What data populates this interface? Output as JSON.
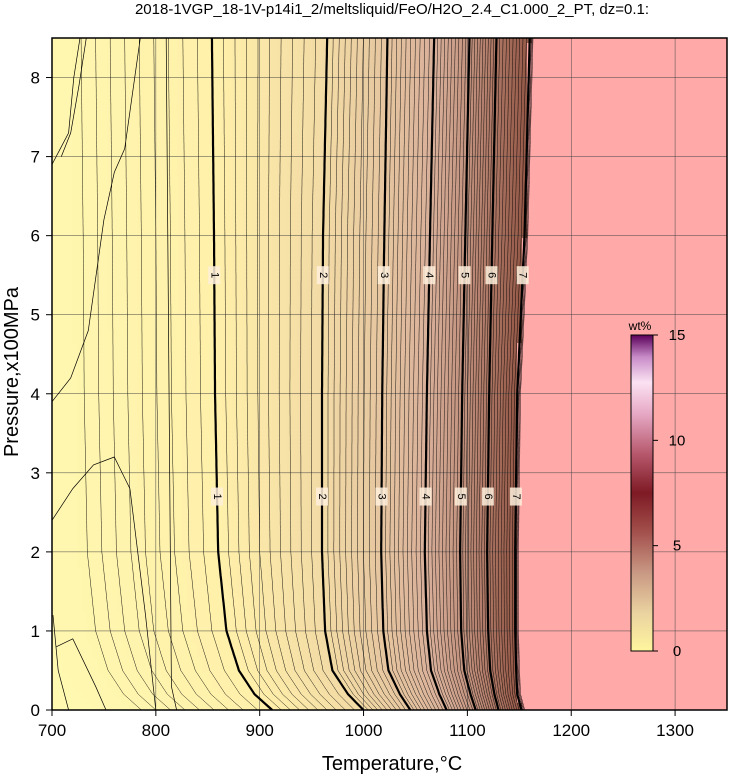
{
  "chart_data": {
    "type": "heatmap",
    "title": "2018-1VGP_18-1V-p14i1_2/meltsliquid/FeO/H2O_2.4_C1.000_2_PT, dz=0.1:",
    "xlabel": "Temperature,°C",
    "ylabel": "Pressure,x100MPa",
    "xlim": [
      700,
      1350
    ],
    "ylim": [
      0,
      8.5
    ],
    "x_ticks": [
      700,
      800,
      900,
      1000,
      1100,
      1200,
      1300
    ],
    "y_ticks": [
      0,
      1,
      2,
      3,
      4,
      5,
      6,
      7,
      8
    ],
    "grid": true,
    "colorbar": {
      "unit": "wt%",
      "range": [
        0,
        15
      ],
      "ticks": [
        0,
        5,
        10,
        15
      ],
      "placement": "right-middle"
    },
    "colors": {
      "low": "#fff8b0",
      "mid": "#d9b09a",
      "high": "#8a4a3a",
      "saturated_region": "#ffaaa8"
    },
    "contour_interval": 0.1,
    "saturated_above_value": 7.5,
    "labeled_contours": [
      {
        "value": 1,
        "label": "1",
        "x_at_p": [
          [
            8.5,
            854
          ],
          [
            6,
            856
          ],
          [
            4,
            857
          ],
          [
            2,
            860
          ],
          [
            1,
            868
          ],
          [
            0.5,
            880
          ],
          [
            0.2,
            895
          ],
          [
            0,
            912
          ]
        ]
      },
      {
        "value": 2,
        "label": "2",
        "x_at_p": [
          [
            8.5,
            965
          ],
          [
            6,
            961
          ],
          [
            4,
            960
          ],
          [
            2,
            960
          ],
          [
            1,
            963
          ],
          [
            0.5,
            970
          ],
          [
            0.2,
            985
          ],
          [
            0,
            1000
          ]
        ]
      },
      {
        "value": 3,
        "label": "3",
        "x_at_p": [
          [
            8.5,
            1023
          ],
          [
            6,
            1020
          ],
          [
            4,
            1018
          ],
          [
            2,
            1017
          ],
          [
            1,
            1019
          ],
          [
            0.5,
            1024
          ],
          [
            0.2,
            1035
          ],
          [
            0,
            1045
          ]
        ]
      },
      {
        "value": 4,
        "label": "4",
        "x_at_p": [
          [
            8.5,
            1068
          ],
          [
            6,
            1064
          ],
          [
            4,
            1061
          ],
          [
            2,
            1059
          ],
          [
            1,
            1061
          ],
          [
            0.5,
            1065
          ],
          [
            0.2,
            1073
          ],
          [
            0,
            1080
          ]
        ]
      },
      {
        "value": 5,
        "label": "5",
        "x_at_p": [
          [
            8.5,
            1102
          ],
          [
            6,
            1098
          ],
          [
            4,
            1095
          ],
          [
            2,
            1093
          ],
          [
            1,
            1094
          ],
          [
            0.5,
            1097
          ],
          [
            0.2,
            1103
          ],
          [
            0,
            1108
          ]
        ]
      },
      {
        "value": 6,
        "label": "6",
        "x_at_p": [
          [
            8.5,
            1128
          ],
          [
            6,
            1124
          ],
          [
            4,
            1121
          ],
          [
            2,
            1119
          ],
          [
            1,
            1120
          ],
          [
            0.5,
            1122
          ],
          [
            0.2,
            1126
          ],
          [
            0,
            1130
          ]
        ]
      },
      {
        "value": 7,
        "label": "7",
        "x_at_p": [
          [
            8.5,
            1160
          ],
          [
            6,
            1155
          ],
          [
            4,
            1148
          ],
          [
            2,
            1146
          ],
          [
            1,
            1146
          ],
          [
            0.5,
            1147
          ],
          [
            0.2,
            1148
          ],
          [
            0,
            1152
          ]
        ]
      }
    ]
  }
}
